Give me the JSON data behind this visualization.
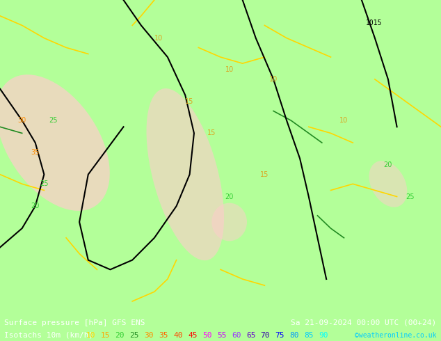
{
  "title_left": "Surface pressure [hPa] GFS ENS",
  "title_right": "Sa 21-09-2024 00:00 UTC (00+24)",
  "legend_label": "Isotachs 10m (km/h)",
  "copyright": "©weatheronline.co.uk",
  "isotach_values": [
    10,
    15,
    20,
    25,
    30,
    35,
    40,
    45,
    50,
    55,
    60,
    65,
    70,
    75,
    80,
    85,
    90
  ],
  "isotach_colors": [
    "#ffd700",
    "#ffd700",
    "#00cc00",
    "#00cc00",
    "#ff8c00",
    "#ff8c00",
    "#ff4500",
    "#ff4500",
    "#ff0000",
    "#ff0000",
    "#cc00cc",
    "#cc00cc",
    "#9900cc",
    "#9900cc",
    "#0000ff",
    "#0000ff",
    "#00ffff"
  ],
  "isotach_colors_actual": [
    "#FFD700",
    "#FFA500",
    "#32CD32",
    "#32CD32",
    "#FF8C00",
    "#FF6600",
    "#FF4500",
    "#FF0000",
    "#FF00FF",
    "#CC00FF",
    "#9900CC",
    "#6600CC",
    "#3300CC",
    "#0000FF",
    "#0099FF",
    "#00CCFF",
    "#00FFFF"
  ],
  "bg_color": "#b3ff99",
  "map_bg": "#b3ff99",
  "bottom_bar_color": "#000000",
  "bottom_bg": "#000000",
  "text_color_left": "#ffffff",
  "text_color_right": "#ffffff",
  "font_size_bottom": 9,
  "fig_width": 6.34,
  "fig_height": 4.9,
  "dpi": 100,
  "legend_colors": [
    "#FFD700",
    "#FFA500",
    "#32CD32",
    "#228B22",
    "#FF8C00",
    "#FF6600",
    "#FF4500",
    "#FF0000",
    "#FF00FF",
    "#CC00FF",
    "#9933FF",
    "#6600CC",
    "#3300AA",
    "#0000FF",
    "#0099FF",
    "#00CCFF",
    "#00FFFF"
  ]
}
